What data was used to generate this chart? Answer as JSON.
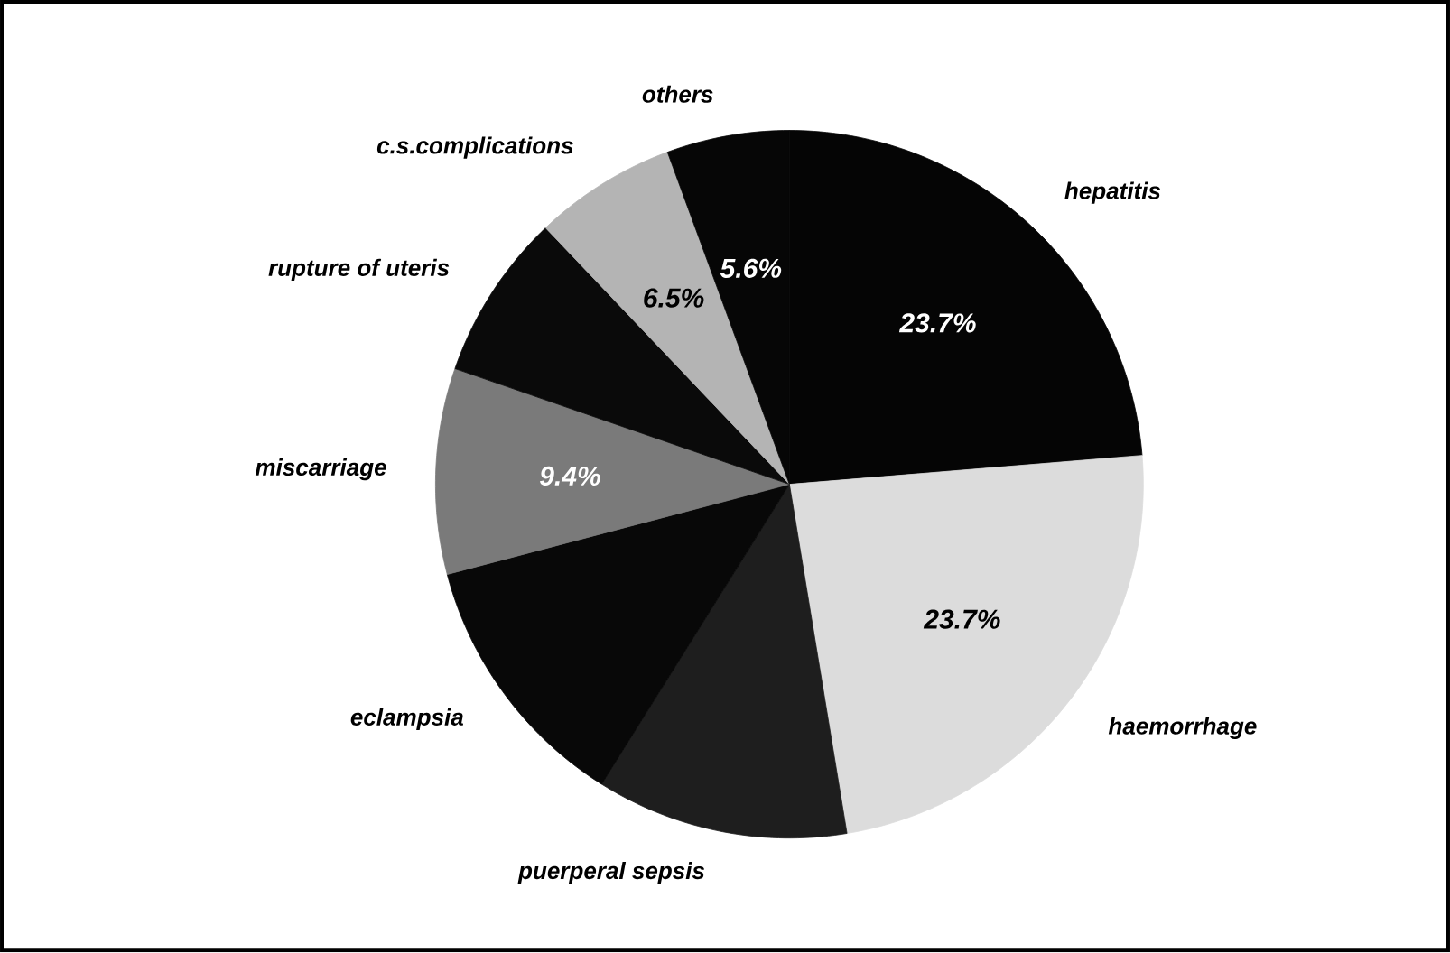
{
  "chart_data": {
    "type": "pie",
    "categories": [
      "hepatitis",
      "haemorrhage",
      "puerperal sepsis",
      "eclampsia",
      "miscarriage",
      "rupture of uteris",
      "c.s.complications",
      "others"
    ],
    "values": [
      23.7,
      23.7,
      11.5,
      12.0,
      9.4,
      7.6,
      6.5,
      5.6
    ],
    "value_labels": [
      "23.7%",
      "23.7%",
      null,
      null,
      "9.4%",
      null,
      "6.5%",
      "5.6%"
    ],
    "colors": [
      "#050505",
      "#dcdcdc",
      "#1e1e1e",
      "#080808",
      "#7a7a7a",
      "#0a0a0a",
      "#b4b4b4",
      "#060606"
    ]
  }
}
